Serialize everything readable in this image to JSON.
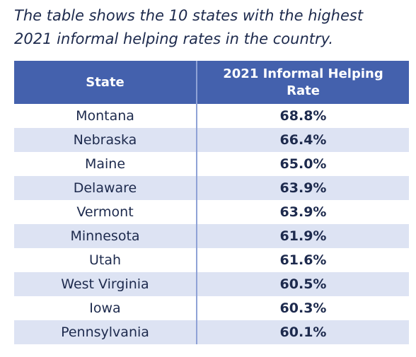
{
  "caption": "The table shows the 10 states with the highest 2021 informal helping rates in the country.",
  "table": {
    "header": [
      "State",
      "2021 Informal Helping Rate"
    ],
    "rows": [
      [
        "Montana",
        "68.8%"
      ],
      [
        "Nebraska",
        "66.4%"
      ],
      [
        "Maine",
        "65.0%"
      ],
      [
        "Delaware",
        "63.9%"
      ],
      [
        "Vermont",
        "63.9%"
      ],
      [
        "Minnesota",
        "61.9%"
      ],
      [
        "Utah",
        "61.6%"
      ],
      [
        "West Virginia",
        "60.5%"
      ],
      [
        "Iowa",
        "60.3%"
      ],
      [
        "Pennsylvania",
        "60.1%"
      ]
    ]
  }
}
